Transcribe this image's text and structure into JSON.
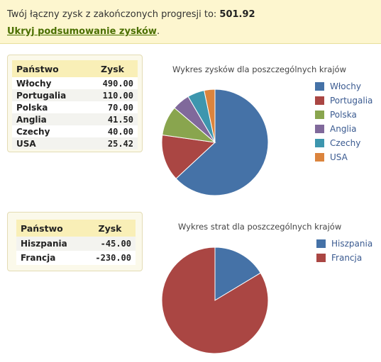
{
  "summary": {
    "text": "Twój łączny zysk z zakończonych progresji to:",
    "total": "501.92",
    "link": "Ukryj podsumowanie zysków",
    "dot": "."
  },
  "profits": {
    "headers": {
      "country": "Państwo",
      "value": "Zysk"
    },
    "rows": [
      {
        "country": "Włochy",
        "value": "490.00"
      },
      {
        "country": "Portugalia",
        "value": "110.00"
      },
      {
        "country": "Polska",
        "value": "70.00"
      },
      {
        "country": "Anglia",
        "value": "41.50"
      },
      {
        "country": "Czechy",
        "value": "40.00"
      },
      {
        "country": "USA",
        "value": "25.42"
      }
    ]
  },
  "losses": {
    "headers": {
      "country": "Państwo",
      "value": "Zysk"
    },
    "rows": [
      {
        "country": "Hiszpania",
        "value": "-45.00"
      },
      {
        "country": "Francja",
        "value": "-230.00"
      }
    ]
  },
  "chart_data": [
    {
      "type": "pie",
      "title": "Wykres zysków dla poszczególnych krajów",
      "categories": [
        "Włochy",
        "Portugalia",
        "Polska",
        "Anglia",
        "Czechy",
        "USA"
      ],
      "values": [
        490.0,
        110.0,
        70.0,
        41.5,
        40.0,
        25.42
      ],
      "colors": [
        "#4572a7",
        "#aa4643",
        "#89a54e",
        "#80699b",
        "#3d96ae",
        "#db843d"
      ],
      "legend": "right"
    },
    {
      "type": "pie",
      "title": "Wykres strat dla poszczególnych krajów",
      "categories": [
        "Hiszpania",
        "Francja"
      ],
      "values": [
        45.0,
        230.0
      ],
      "colors": [
        "#4572a7",
        "#aa4643"
      ],
      "legend": "right"
    }
  ]
}
